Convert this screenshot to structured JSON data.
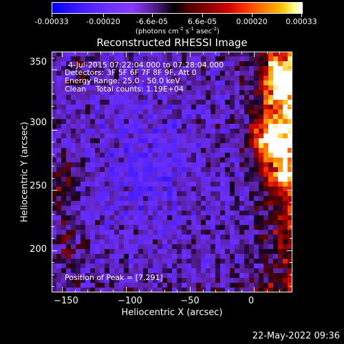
{
  "colorbar": {
    "labels": [
      "-0.00033",
      "-0.00020",
      "-6.6e-05",
      "6.6e-05",
      "0.00020",
      "0.00033"
    ],
    "units_main": "(photons cm",
    "units_sup1": "-2",
    "units_mid1": " s",
    "units_sup2": "-1",
    "units_mid2": " asec",
    "units_sup3": "-2",
    "units_end": ")"
  },
  "title": "Reconstructed RHESSI Image",
  "annotations": {
    "time": "4-Jul-2015 07:22:04.000 to 07:28:04.000",
    "detectors": "Detectors: 3F 5F 6F 7F 8F 9F, Att 0",
    "energy": "Energy Range: 25.0 - 50.0 keV",
    "method": "Clean    Total counts: 1.19E+04",
    "peak": "Position of Peak = [7,291]"
  },
  "axes": {
    "xlabel": "Heliocentric X (arcsec)",
    "ylabel": "Heliocentric Y (arcsec)",
    "xlim": [
      -158,
      30
    ],
    "ylim": [
      165,
      365
    ],
    "xticks": [
      -150,
      -100,
      -50,
      0
    ],
    "yticks": [
      200,
      250,
      300,
      350
    ],
    "xtick_labels": [
      "−150",
      "−100",
      "−50",
      "0"
    ],
    "ytick_labels": [
      "200",
      "250",
      "300",
      "350"
    ]
  },
  "image": {
    "colormap": [
      "#0000ff",
      "#6b2fff",
      "#5a1f9a",
      "#000000",
      "#8b0000",
      "#ff3000",
      "#ffc000",
      "#ffffff"
    ],
    "bright_region": "right edge, Y 260-365"
  },
  "timestamp": "22-May-2022 09:36"
}
